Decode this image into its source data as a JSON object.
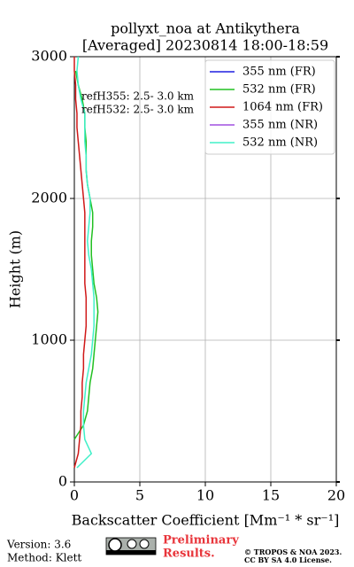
{
  "chart_data": {
    "type": "line",
    "title": [
      "pollyxt_noa at Antikythera",
      "[Averaged] 20230814 18:00-18:59"
    ],
    "x_label": "Backscatter Coefficient [Mm⁻¹ * sr⁻¹]",
    "y_label": "Height (m)",
    "annotations": [
      "refH355:  2.5- 3.0 km",
      "refH532:  2.5- 3.0 km"
    ],
    "y": [
      0,
      100,
      200,
      300,
      400,
      500,
      600,
      700,
      800,
      900,
      1000,
      1100,
      1200,
      1300,
      1400,
      1500,
      1600,
      1700,
      1800,
      1900,
      2000,
      2100,
      2200,
      2300,
      2400,
      2500,
      2600,
      2700,
      2800,
      2900,
      3000
    ],
    "series": [
      {
        "name": "355 nm (FR)",
        "color": "#1f1fe0",
        "values": [
          null,
          null,
          null,
          null,
          null,
          null,
          null,
          null,
          null,
          null,
          null,
          null,
          null,
          null,
          null,
          null,
          null,
          null,
          null,
          null,
          null,
          null,
          null,
          null,
          null,
          null,
          null,
          null,
          null,
          null,
          null
        ]
      },
      {
        "name": "532 nm (FR)",
        "color": "#22c022",
        "values": [
          null,
          null,
          null,
          0,
          0.7,
          1.0,
          1.1,
          1.2,
          1.4,
          1.5,
          1.6,
          1.7,
          1.8,
          1.7,
          1.5,
          1.4,
          1.3,
          1.3,
          1.4,
          1.4,
          1.2,
          1.0,
          0.9,
          0.9,
          0.9,
          0.8,
          0.8,
          0.6,
          0.3,
          0.1,
          null
        ]
      },
      {
        "name": "1064 nm (FR)",
        "color": "#d01818",
        "values": [
          null,
          0,
          0.3,
          0.4,
          0.5,
          0.5,
          0.6,
          0.6,
          0.7,
          0.7,
          0.8,
          0.9,
          0.9,
          0.9,
          0.8,
          0.8,
          0.8,
          0.8,
          0.8,
          0.8,
          0.7,
          0.6,
          0.5,
          0.4,
          0.3,
          0.2,
          0.2,
          0.1,
          0.1,
          0.0,
          0.0
        ]
      },
      {
        "name": "355 nm (NR)",
        "color": "#a050e0",
        "values": [
          null,
          null,
          null,
          null,
          null,
          null,
          null,
          null,
          null,
          null,
          null,
          null,
          null,
          null,
          null,
          null,
          null,
          null,
          null,
          null,
          null,
          null,
          null,
          null,
          null,
          null,
          null,
          null,
          null,
          null,
          null
        ]
      },
      {
        "name": "532 nm (NR)",
        "color": "#40f0c8",
        "values": [
          null,
          0.2,
          1.3,
          0.8,
          0.7,
          0.7,
          0.8,
          0.9,
          1.1,
          1.3,
          1.4,
          1.5,
          1.5,
          1.5,
          1.4,
          1.3,
          1.1,
          1.0,
          1.1,
          1.2,
          1.2,
          1.0,
          0.9,
          0.9,
          0.8,
          0.8,
          0.8,
          0.5,
          0.3,
          0.2,
          0.3
        ]
      }
    ],
    "xlim": [
      0,
      20
    ],
    "xticks": [
      0,
      5,
      10,
      15,
      20
    ],
    "ylim": [
      0,
      3000
    ],
    "yticks": [
      0,
      1000,
      2000,
      3000
    ],
    "grid": true,
    "legend": "upper right"
  },
  "footer": {
    "version": "Version: 3.6",
    "method": "Method: Klett",
    "preliminary": [
      "Preliminary",
      "Results."
    ],
    "copyright": [
      "© TROPOS & NOA 2023.",
      "CC BY SA 4.0 License."
    ]
  }
}
